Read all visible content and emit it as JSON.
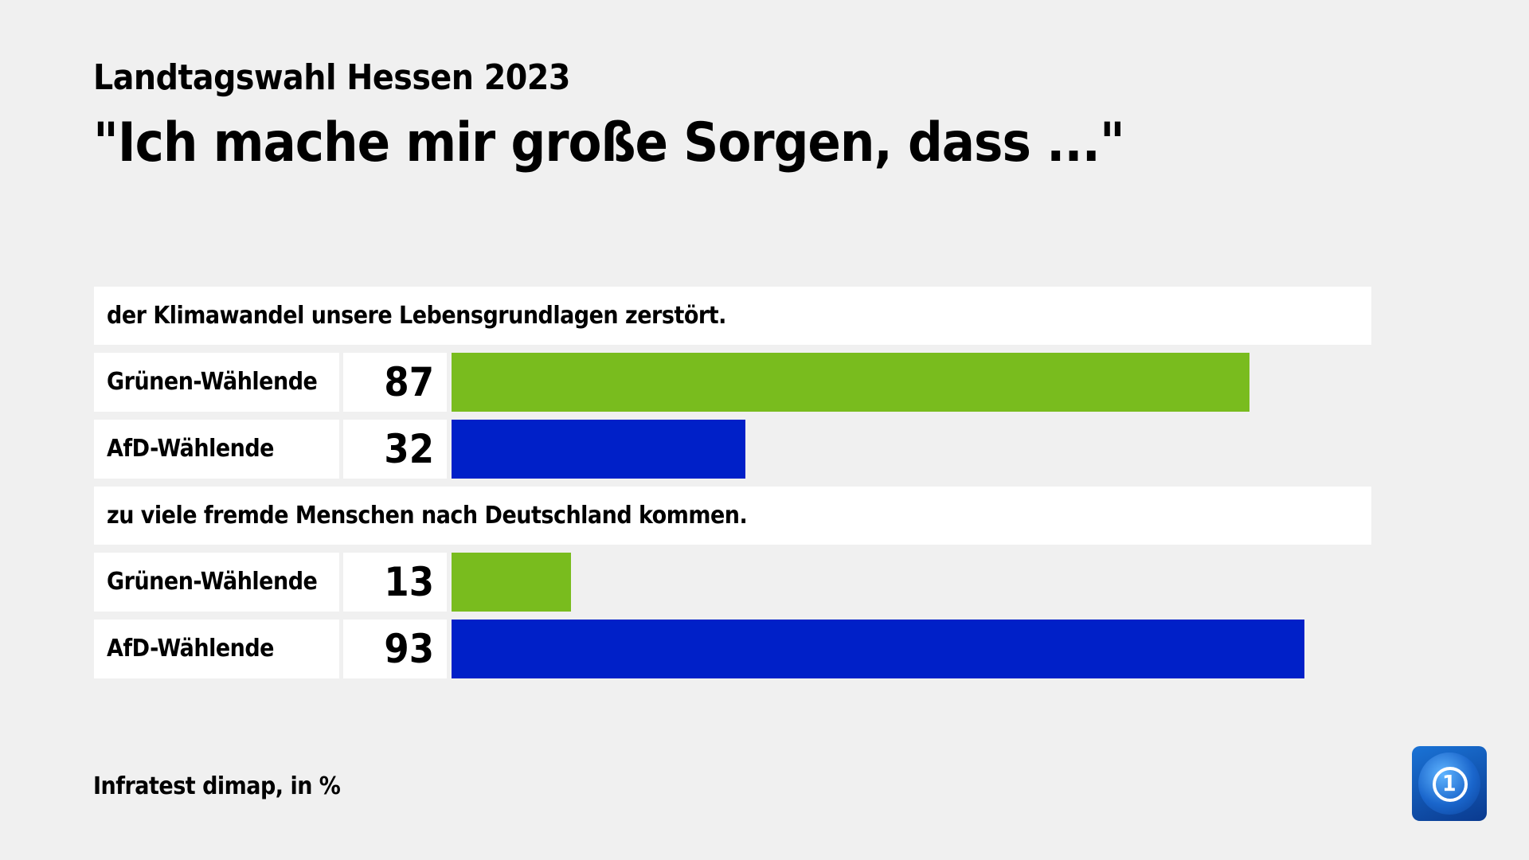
{
  "header": {
    "subtitle": "Landtagswahl Hessen 2023",
    "title": "\"Ich mache mir große Sorgen, dass ...\""
  },
  "footer": {
    "source": "Infratest dimap, in %",
    "logo": "tagesschau-logo-icon"
  },
  "colors": {
    "gruene": "#79bc1e",
    "afd": "#0020c8",
    "background": "#f0f0f0",
    "cell": "#ffffff"
  },
  "chart_data": {
    "type": "bar",
    "orientation": "horizontal",
    "title": "\"Ich mache mir große Sorgen, dass ...\"",
    "subtitle": "Landtagswahl Hessen 2023",
    "unit": "%",
    "source": "Infratest dimap, in %",
    "groups": [
      {
        "question": "der Klimawandel unsere Lebensgrundlagen zerstört.",
        "rows": [
          {
            "label": "Grünen-Wählende",
            "value": 87,
            "color": "#79bc1e"
          },
          {
            "label": "AfD-Wählende",
            "value": 32,
            "color": "#0020c8"
          }
        ]
      },
      {
        "question": "zu viele fremde Menschen nach Deutschland kommen.",
        "rows": [
          {
            "label": "Grünen-Wählende",
            "value": 13,
            "color": "#79bc1e"
          },
          {
            "label": "AfD-Wählende",
            "value": 93,
            "color": "#0020c8"
          }
        ]
      }
    ],
    "xlim": [
      0,
      100
    ]
  }
}
